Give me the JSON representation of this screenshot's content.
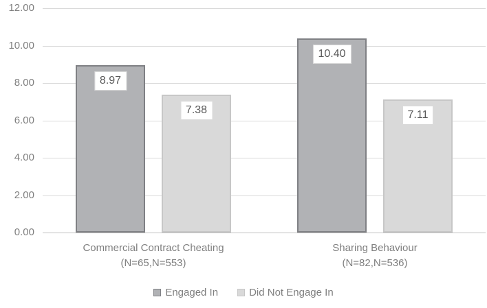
{
  "chart_data": {
    "type": "bar",
    "categories": [
      {
        "name": "Commercial Contract Cheating",
        "sub": "(N=65,N=553)"
      },
      {
        "name": "Sharing Behaviour",
        "sub": "(N=82,N=536)"
      }
    ],
    "series": [
      {
        "name": "Engaged In",
        "values": [
          8.97,
          10.4
        ],
        "labels": [
          "8.97",
          "10.40"
        ],
        "fill": "#b1b2b5",
        "border": "#7f8084"
      },
      {
        "name": "Did Not Engage In",
        "values": [
          7.38,
          7.11
        ],
        "labels": [
          "7.38",
          "7.11"
        ],
        "fill": "#d9d9d9",
        "border": "#c7c7c7"
      }
    ],
    "ylim": [
      0,
      12
    ],
    "ytick_values": [
      0,
      2,
      4,
      6,
      8,
      10,
      12
    ],
    "ytick_labels": [
      "0.00",
      "2.00",
      "4.00",
      "6.00",
      "8.00",
      "10.00",
      "12.00"
    ],
    "grid": true,
    "legend_position": "bottom",
    "colors": {
      "background": "#ffffff",
      "grid": "#d9d9d9",
      "axis_line": "#bfbfbf",
      "tick_text": "#7f7f7f",
      "category_text": "#7f7f7f",
      "legend_text": "#7f7f7f",
      "data_label_text": "#595959",
      "data_label_bg": "#ffffff",
      "data_label_border": "#d9d9d9"
    }
  }
}
